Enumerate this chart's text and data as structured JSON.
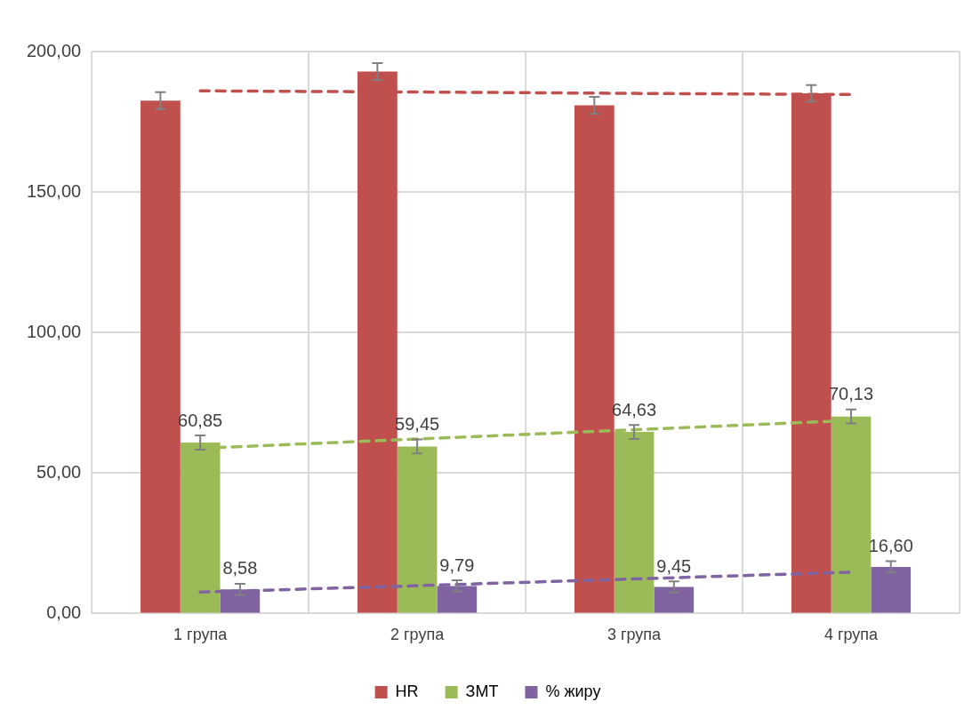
{
  "chart_data": {
    "type": "bar",
    "categories": [
      "1 група",
      "2 група",
      "3 група",
      "4 група"
    ],
    "ylim": [
      0,
      200
    ],
    "yticks": [
      {
        "value": 0,
        "label": "0,00"
      },
      {
        "value": 50,
        "label": "50,00"
      },
      {
        "value": 100,
        "label": "100,00"
      },
      {
        "value": 150,
        "label": "150,00"
      },
      {
        "value": 200,
        "label": "200,00"
      }
    ],
    "grid": true,
    "legend": "bottom",
    "series": [
      {
        "name": "HR",
        "color": "#c0504d",
        "values": [
          182.5,
          192.9,
          180.9,
          185.1
        ],
        "errors": [
          3,
          3,
          3,
          3
        ]
      },
      {
        "name": "ЗМТ",
        "color": "#9bbb59",
        "values": [
          60.85,
          59.45,
          64.63,
          70.13
        ],
        "errors": [
          2.5,
          2.5,
          2.5,
          2.5
        ],
        "value_labels": [
          "60,85",
          "59,45",
          "64,63",
          "70,13"
        ]
      },
      {
        "name": "% жиру",
        "color": "#8064a2",
        "values": [
          8.58,
          9.79,
          9.45,
          16.6
        ],
        "errors": [
          2,
          2,
          2,
          2
        ],
        "value_labels": [
          "8,58",
          "9,79",
          "9,45",
          "16,60"
        ]
      },
      {
        "type": "line",
        "color": "#c0504d",
        "line_style": "dashed",
        "marker": "none",
        "values": [
          186,
          185.6,
          185.1,
          184.7
        ]
      },
      {
        "type": "line",
        "color": "#9bbb59",
        "line_style": "dashed",
        "marker": "none",
        "values": [
          58.8,
          62.1,
          65.4,
          68.7
        ]
      },
      {
        "type": "line",
        "color": "#8064a2",
        "line_style": "dashed",
        "marker": "none",
        "values": [
          7.6,
          9.9,
          12.3,
          14.7
        ]
      }
    ]
  }
}
